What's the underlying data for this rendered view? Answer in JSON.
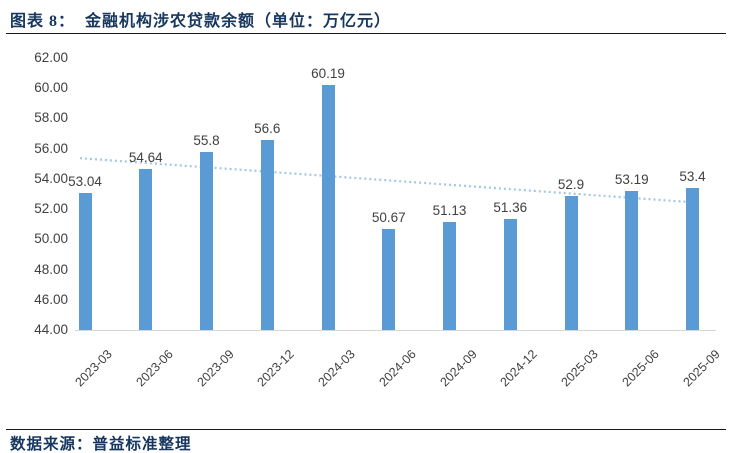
{
  "header": {
    "title": "图表 8：  金融机构涉农贷款余额（单位：万亿元）"
  },
  "chart_data": {
    "type": "bar",
    "title": "金融机构涉农贷款余额",
    "unit": "万亿元",
    "categories": [
      "2023-03",
      "2023-06",
      "2023-09",
      "2023-12",
      "2024-03",
      "2024-06",
      "2024-09",
      "2024-12",
      "2025-03",
      "2025-06",
      "2025-09"
    ],
    "values": [
      53.04,
      54.64,
      55.8,
      56.6,
      60.19,
      50.67,
      51.13,
      51.36,
      52.9,
      53.19,
      53.4
    ],
    "value_labels": [
      "53.04",
      "54.64",
      "55.8",
      "56.6",
      "60.19",
      "50.67",
      "51.13",
      "51.36",
      "52.9",
      "53.19",
      "53.4"
    ],
    "xlabel": "",
    "ylabel": "",
    "ylim": [
      44,
      62
    ],
    "ytick_step": 2,
    "grid": false,
    "legend_position": "none",
    "bar_color": "#5B9BD5",
    "trendline": {
      "style": "dotted",
      "color": "#A5C6E7",
      "start_value": 55.37,
      "end_value": 52.44
    }
  },
  "footer": {
    "source": "数据来源：普益标准整理"
  },
  "colors": {
    "title_text": "#17375E",
    "axis_text": "#404040",
    "baseline": "#D6D6D6",
    "divider": "#1A1A1A"
  }
}
